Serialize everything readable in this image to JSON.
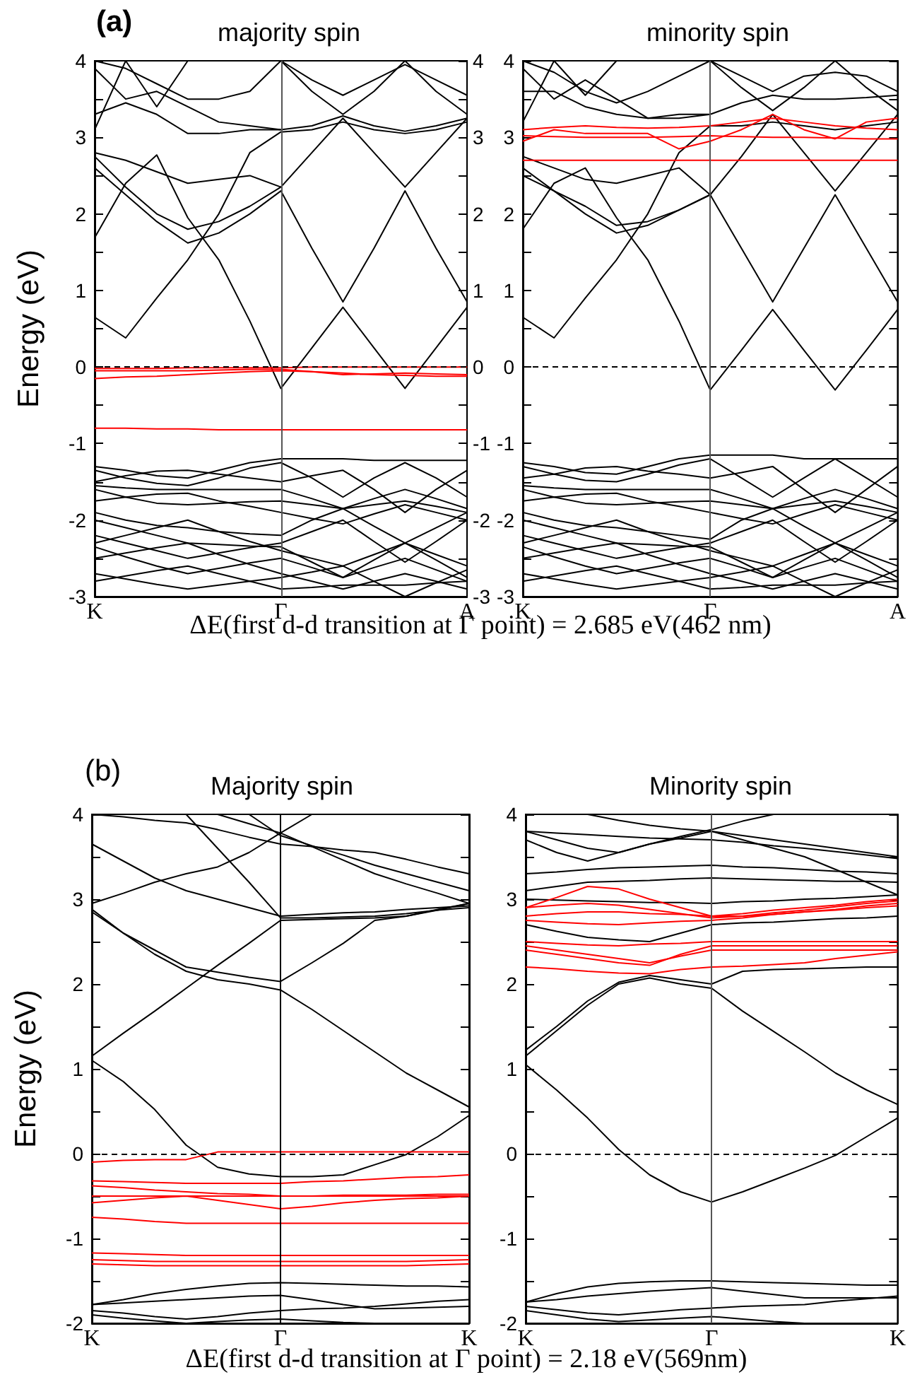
{
  "chart_data": [
    {
      "type": "line",
      "title": "majority spin",
      "ylabel": "Energy (eV)",
      "xlabel": "ΔE(first d-d transition at Γ point) = 2.685 eV(462 nm)",
      "annotations": [
        "(a)"
      ],
      "marker": "none",
      "grid": false,
      "categories": [
        "K",
        null,
        null,
        null,
        null,
        null,
        "Γ",
        null,
        null,
        null,
        null,
        null,
        "A"
      ],
      "ylim": [
        -3,
        4
      ],
      "yticks": [
        -3,
        {
          "value": -2.5,
          "label": null
        },
        -2,
        {
          "value": -1.5,
          "label": null
        },
        -1,
        {
          "value": -0.5,
          "label": null
        },
        0,
        {
          "value": 0.5,
          "label": null
        },
        1,
        {
          "value": 1.5,
          "label": null
        },
        2,
        {
          "value": 2.5,
          "label": null
        },
        3,
        {
          "value": 3.5,
          "label": null
        },
        4
      ],
      "y2lim": [
        -3,
        4
      ],
      "y2ticks": [
        -3,
        {
          "value": -2.5,
          "label": null
        },
        -2,
        {
          "value": -1.5,
          "label": null
        },
        -1,
        {
          "value": -0.5,
          "label": null
        },
        0,
        {
          "value": 0.5,
          "label": null
        },
        1,
        {
          "value": 1.5,
          "label": null
        },
        2,
        {
          "value": 2.5,
          "label": null
        },
        3,
        {
          "value": 3.5,
          "label": null
        },
        4
      ],
      "ref_lines": [
        {
          "axis": "x",
          "value": "Γ",
          "color": "#555555"
        },
        {
          "axis": "y",
          "value": 0,
          "line_style": "dashed",
          "color": "#000000"
        }
      ],
      "series": [
        {
          "color": "#000000",
          "values": [
            0.65,
            0.38,
            0.9,
            1.4,
            2.0,
            2.8,
            3.07,
            3.1,
            3.2,
            3.1,
            3.05,
            3.1,
            3.2
          ]
        },
        {
          "color": "#000000",
          "values": [
            1.69,
            2.4,
            2.77,
            1.95,
            1.4,
            0.6,
            -0.28,
            0.25,
            0.78,
            0.25,
            -0.28,
            0.25,
            0.78
          ]
        },
        {
          "color": "#000000",
          "values": [
            2.6,
            2.25,
            1.9,
            1.62,
            1.75,
            2.0,
            2.3,
            1.55,
            0.85,
            1.55,
            2.3,
            1.55,
            0.85
          ]
        },
        {
          "color": "#000000",
          "values": [
            2.75,
            2.35,
            2.0,
            1.8,
            1.9,
            2.1,
            2.35,
            2.8,
            3.25,
            2.8,
            2.35,
            2.8,
            3.25
          ]
        },
        {
          "color": "#000000",
          "values": [
            2.8,
            2.7,
            2.55,
            2.4,
            2.45,
            2.5,
            2.35,
            null,
            null,
            null,
            null,
            null,
            null
          ]
        },
        {
          "color": "#000000",
          "values": [
            3.3,
            3.45,
            3.3,
            3.05,
            3.05,
            3.1,
            3.1,
            3.15,
            3.28,
            3.15,
            3.08,
            3.15,
            3.25
          ]
        },
        {
          "color": "#000000",
          "values": [
            3.9,
            3.5,
            3.6,
            3.4,
            3.2,
            3.15,
            3.1,
            null,
            null,
            null,
            null,
            null,
            null
          ]
        },
        {
          "color": "#000000",
          "values": [
            4.0,
            3.9,
            3.7,
            3.5,
            3.5,
            3.6,
            4.0,
            3.6,
            3.3,
            3.6,
            4.0,
            3.6,
            3.3
          ]
        },
        {
          "color": "#000000",
          "values": [
            null,
            null,
            null,
            null,
            null,
            null,
            4.0,
            3.75,
            3.55,
            3.75,
            3.95,
            3.75,
            3.55
          ]
        },
        {
          "color": "#000000",
          "values": [
            3.1,
            4.0,
            3.4,
            4.0,
            null,
            null,
            null,
            null,
            null,
            null,
            null,
            null,
            null
          ]
        },
        {
          "color": "#ff0000",
          "values": [
            -0.02,
            -0.02,
            -0.02,
            -0.01,
            -0.01,
            -0.01,
            -0.01,
            0,
            0,
            0,
            0,
            0,
            0
          ]
        },
        {
          "color": "#ff0000",
          "values": [
            -0.05,
            -0.05,
            -0.05,
            -0.05,
            -0.04,
            -0.03,
            -0.03,
            -0.06,
            -0.1,
            -0.09,
            -0.08,
            -0.09,
            -0.1
          ]
        },
        {
          "color": "#ff0000",
          "values": [
            -0.15,
            -0.13,
            -0.12,
            -0.1,
            -0.08,
            -0.06,
            -0.05,
            -0.06,
            -0.08,
            -0.1,
            -0.11,
            -0.12,
            -0.12
          ]
        },
        {
          "color": "#ff0000",
          "values": [
            -0.8,
            -0.8,
            -0.81,
            -0.81,
            -0.82,
            -0.82,
            -0.82,
            -0.82,
            -0.82,
            -0.82,
            -0.82,
            -0.82,
            -0.82
          ]
        },
        {
          "color": "#000000",
          "values": [
            -1.3,
            -1.35,
            -1.42,
            -1.45,
            -1.35,
            -1.25,
            -1.2,
            -1.2,
            -1.2,
            -1.22,
            -1.22,
            -1.22,
            -1.22
          ]
        },
        {
          "color": "#000000",
          "values": [
            -1.35,
            -1.45,
            -1.52,
            -1.55,
            -1.45,
            -1.32,
            -1.25,
            -1.45,
            -1.7,
            -1.45,
            -1.25,
            -1.45,
            -1.7
          ]
        },
        {
          "color": "#000000",
          "values": [
            -1.5,
            -1.42,
            -1.36,
            -1.35,
            -1.4,
            -1.45,
            -1.5,
            -1.42,
            -1.35,
            -1.6,
            -1.9,
            -1.6,
            -1.35
          ]
        },
        {
          "color": "#000000",
          "values": [
            -1.55,
            -1.58,
            -1.6,
            -1.6,
            -1.6,
            -1.6,
            -1.6,
            -1.72,
            -1.85,
            -1.72,
            -1.6,
            -1.72,
            -1.85
          ]
        },
        {
          "color": "#000000",
          "values": [
            -1.6,
            -1.7,
            -1.78,
            -1.8,
            -1.78,
            -1.76,
            -1.75,
            -1.8,
            -1.85,
            -1.8,
            -1.75,
            -1.82,
            -1.9
          ]
        },
        {
          "color": "#000000",
          "values": [
            -1.75,
            -1.7,
            -1.66,
            -1.65,
            -1.75,
            -1.82,
            -1.9,
            -1.98,
            -2.05,
            -1.92,
            -1.8,
            -1.9,
            -2.0
          ]
        },
        {
          "color": "#000000",
          "values": [
            -1.9,
            -2.0,
            -2.07,
            -2.1,
            -2.15,
            -2.18,
            -2.2,
            -2.0,
            -1.85,
            -2.08,
            -2.3,
            -2.1,
            -1.9
          ]
        },
        {
          "color": "#000000",
          "values": [
            -2.0,
            -2.1,
            -2.2,
            -2.3,
            -2.32,
            -2.34,
            -2.35,
            -2.55,
            -2.75,
            -2.52,
            -2.3,
            -2.52,
            -2.75
          ]
        },
        {
          "color": "#000000",
          "values": [
            -2.2,
            -2.3,
            -2.4,
            -2.5,
            -2.43,
            -2.36,
            -2.3,
            -2.15,
            -2.0,
            -2.28,
            -2.55,
            -2.28,
            -2.0
          ]
        },
        {
          "color": "#000000",
          "values": [
            -2.3,
            -2.2,
            -2.1,
            -2.0,
            -2.15,
            -2.28,
            -2.4,
            -2.5,
            -2.6,
            -2.45,
            -2.3,
            -2.45,
            -2.6
          ]
        },
        {
          "color": "#000000",
          "values": [
            -2.35,
            -2.48,
            -2.6,
            -2.7,
            -2.63,
            -2.56,
            -2.5,
            -2.62,
            -2.75,
            -2.62,
            -2.5,
            -2.65,
            -2.8
          ]
        },
        {
          "color": "#000000",
          "values": [
            -2.5,
            -2.43,
            -2.36,
            -2.3,
            -2.45,
            -2.58,
            -2.7,
            -2.8,
            -2.9,
            -2.8,
            -2.7,
            -2.8,
            -2.9
          ]
        },
        {
          "color": "#000000",
          "values": [
            -2.7,
            -2.77,
            -2.84,
            -2.9,
            -2.85,
            -2.8,
            -2.75,
            -2.68,
            -2.6,
            -2.8,
            -3.0,
            -2.82,
            -2.65
          ]
        },
        {
          "color": "#000000",
          "values": [
            -2.8,
            -2.73,
            -2.66,
            -2.6,
            -2.7,
            -2.8,
            -2.9,
            -2.88,
            -2.85,
            -2.85,
            -2.85,
            -2.82,
            -2.8
          ]
        }
      ]
    },
    {
      "type": "line",
      "title": "minority spin",
      "marker": "none",
      "grid": false,
      "categories": [
        "K",
        null,
        null,
        null,
        null,
        null,
        "Γ",
        null,
        null,
        null,
        null,
        null,
        "A"
      ],
      "ylim": [
        -3,
        4
      ],
      "yticks": [
        -3,
        {
          "value": -2.5,
          "label": null
        },
        -2,
        {
          "value": -1.5,
          "label": null
        },
        -1,
        {
          "value": -0.5,
          "label": null
        },
        0,
        {
          "value": 0.5,
          "label": null
        },
        1,
        {
          "value": 1.5,
          "label": null
        },
        2,
        {
          "value": 2.5,
          "label": null
        },
        3,
        {
          "value": 3.5,
          "label": null
        },
        4
      ],
      "ref_lines": [
        {
          "axis": "x",
          "value": "Γ",
          "color": "#555555"
        },
        {
          "axis": "y",
          "value": 0,
          "line_style": "dashed",
          "color": "#000000"
        }
      ],
      "series": [
        {
          "color": "#000000",
          "values": [
            0.65,
            0.38,
            0.9,
            1.4,
            2.0,
            2.8,
            3.15,
            3.15,
            3.2,
            3.15,
            3.1,
            3.15,
            3.2
          ]
        },
        {
          "color": "#000000",
          "values": [
            1.8,
            2.4,
            2.6,
            1.95,
            1.4,
            0.6,
            -0.3,
            0.22,
            0.75,
            0.22,
            -0.3,
            0.22,
            0.75
          ]
        },
        {
          "color": "#000000",
          "values": [
            2.6,
            2.3,
            2.0,
            1.75,
            1.85,
            2.05,
            2.25,
            1.55,
            0.85,
            1.55,
            2.25,
            1.55,
            0.85
          ]
        },
        {
          "color": "#000000",
          "values": [
            2.5,
            2.3,
            2.1,
            1.85,
            1.9,
            2.05,
            2.25,
            2.75,
            3.3,
            2.8,
            2.3,
            2.8,
            3.3
          ]
        },
        {
          "color": "#000000",
          "values": [
            2.75,
            2.6,
            2.45,
            2.4,
            2.5,
            2.6,
            2.25,
            null,
            null,
            null,
            null,
            null,
            null
          ]
        },
        {
          "color": "#000000",
          "values": [
            3.6,
            3.6,
            3.4,
            3.3,
            3.25,
            3.25,
            3.3,
            3.45,
            3.55,
            3.5,
            3.5,
            3.52,
            3.55
          ]
        },
        {
          "color": "#000000",
          "values": [
            3.9,
            3.5,
            3.75,
            3.5,
            3.25,
            3.3,
            3.3,
            null,
            null,
            null,
            null,
            null,
            null
          ]
        },
        {
          "color": "#000000",
          "values": [
            4.0,
            3.85,
            3.6,
            3.45,
            3.6,
            3.8,
            4.0,
            3.65,
            3.35,
            3.65,
            4.0,
            3.65,
            3.35
          ]
        },
        {
          "color": "#000000",
          "values": [
            null,
            null,
            null,
            null,
            null,
            null,
            4.0,
            3.8,
            3.6,
            3.8,
            3.85,
            3.8,
            3.6
          ]
        },
        {
          "color": "#000000",
          "values": [
            3.2,
            4.0,
            3.55,
            4.0,
            null,
            null,
            null,
            null,
            null,
            null,
            null,
            null,
            null
          ]
        },
        {
          "color": "#ff0000",
          "values": [
            2.95,
            3.1,
            3.05,
            3.05,
            3.05,
            2.85,
            2.95,
            3.1,
            3.3,
            3.1,
            2.98,
            3.2,
            3.25
          ]
        },
        {
          "color": "#ff0000",
          "values": [
            3.02,
            3.01,
            3.0,
            3.0,
            3.0,
            3.01,
            3.02,
            3.01,
            3.0,
            3.0,
            2.99,
            2.98,
            2.98
          ]
        },
        {
          "color": "#ff0000",
          "values": [
            2.7,
            2.7,
            2.7,
            2.7,
            2.7,
            2.7,
            2.7,
            2.7,
            2.7,
            2.7,
            2.7,
            2.7,
            2.7
          ]
        },
        {
          "color": "#ff0000",
          "values": [
            3.1,
            3.13,
            3.15,
            3.13,
            3.12,
            3.13,
            3.15,
            3.2,
            3.25,
            3.2,
            3.15,
            3.12,
            3.1
          ]
        },
        {
          "color": "#000000",
          "values": [
            -1.25,
            -1.3,
            -1.38,
            -1.4,
            -1.3,
            -1.2,
            -1.15,
            -1.15,
            -1.15,
            -1.2,
            -1.2,
            -1.2,
            -1.2
          ]
        },
        {
          "color": "#000000",
          "values": [
            -1.3,
            -1.4,
            -1.48,
            -1.5,
            -1.4,
            -1.28,
            -1.2,
            -1.45,
            -1.7,
            -1.45,
            -1.2,
            -1.45,
            -1.7
          ]
        },
        {
          "color": "#000000",
          "values": [
            -1.45,
            -1.4,
            -1.32,
            -1.3,
            -1.36,
            -1.4,
            -1.45,
            -1.38,
            -1.3,
            -1.6,
            -1.9,
            -1.6,
            -1.3
          ]
        },
        {
          "color": "#000000",
          "values": [
            -1.55,
            -1.58,
            -1.6,
            -1.6,
            -1.6,
            -1.6,
            -1.6,
            -1.72,
            -1.85,
            -1.72,
            -1.6,
            -1.72,
            -1.85
          ]
        },
        {
          "color": "#000000",
          "values": [
            -1.6,
            -1.7,
            -1.78,
            -1.8,
            -1.78,
            -1.76,
            -1.75,
            -1.8,
            -1.85,
            -1.8,
            -1.75,
            -1.82,
            -1.9
          ]
        },
        {
          "color": "#000000",
          "values": [
            -1.75,
            -1.7,
            -1.66,
            -1.65,
            -1.75,
            -1.82,
            -1.9,
            -1.98,
            -2.05,
            -1.92,
            -1.8,
            -1.9,
            -2.0
          ]
        },
        {
          "color": "#000000",
          "values": [
            -1.9,
            -2.0,
            -2.07,
            -2.1,
            -2.15,
            -2.2,
            -2.25,
            -2.0,
            -1.85,
            -2.08,
            -2.3,
            -2.1,
            -1.9
          ]
        },
        {
          "color": "#000000",
          "values": [
            -2.0,
            -2.1,
            -2.2,
            -2.3,
            -2.32,
            -2.34,
            -2.35,
            -2.55,
            -2.75,
            -2.52,
            -2.3,
            -2.52,
            -2.75
          ]
        },
        {
          "color": "#000000",
          "values": [
            -2.2,
            -2.3,
            -2.4,
            -2.5,
            -2.43,
            -2.36,
            -2.3,
            -2.15,
            -2.0,
            -2.28,
            -2.55,
            -2.28,
            -2.0
          ]
        },
        {
          "color": "#000000",
          "values": [
            -2.3,
            -2.2,
            -2.1,
            -2.0,
            -2.15,
            -2.28,
            -2.4,
            -2.5,
            -2.6,
            -2.45,
            -2.3,
            -2.45,
            -2.6
          ]
        },
        {
          "color": "#000000",
          "values": [
            -2.35,
            -2.48,
            -2.6,
            -2.7,
            -2.63,
            -2.56,
            -2.5,
            -2.62,
            -2.75,
            -2.62,
            -2.5,
            -2.65,
            -2.8
          ]
        },
        {
          "color": "#000000",
          "values": [
            -2.5,
            -2.43,
            -2.36,
            -2.3,
            -2.45,
            -2.58,
            -2.7,
            -2.8,
            -2.9,
            -2.8,
            -2.7,
            -2.8,
            -2.9
          ]
        },
        {
          "color": "#000000",
          "values": [
            -2.7,
            -2.77,
            -2.84,
            -2.9,
            -2.85,
            -2.8,
            -2.75,
            -2.68,
            -2.6,
            -2.8,
            -3.0,
            -2.82,
            -2.65
          ]
        },
        {
          "color": "#000000",
          "values": [
            -2.8,
            -2.73,
            -2.66,
            -2.6,
            -2.7,
            -2.8,
            -2.9,
            -2.88,
            -2.85,
            -2.85,
            -2.85,
            -2.82,
            -2.8
          ]
        }
      ]
    },
    {
      "type": "line",
      "title": "Majority spin",
      "ylabel": "Energy (eV)",
      "xlabel": "ΔE(first d-d transition at Γ point) = 2.18 eV(569nm)",
      "annotations": [
        "(b)"
      ],
      "marker": "none",
      "grid": false,
      "categories": [
        "K",
        null,
        null,
        null,
        null,
        null,
        "Γ",
        null,
        null,
        null,
        null,
        null,
        "K"
      ],
      "ylim": [
        -2,
        4
      ],
      "yticks": [
        -2,
        {
          "value": -1.5,
          "label": null
        },
        -1,
        {
          "value": -0.5,
          "label": null
        },
        0,
        {
          "value": 0.5,
          "label": null
        },
        1,
        {
          "value": 1.5,
          "label": null
        },
        2,
        {
          "value": 2.5,
          "label": null
        },
        3,
        {
          "value": 3.5,
          "label": null
        },
        4
      ],
      "ref_lines": [
        {
          "axis": "x",
          "value": "Γ",
          "color": "#000000"
        },
        {
          "axis": "y",
          "value": 0,
          "line_style": "dashed",
          "color": "#000000"
        }
      ],
      "series": [
        {
          "color": "#000000",
          "values": [
            1.1,
            0.85,
            0.52,
            0.1,
            -0.16,
            -0.24,
            -0.27,
            -0.27,
            -0.25,
            -0.13,
            -0.01,
            0.2,
            0.45
          ]
        },
        {
          "color": "#000000",
          "values": [
            1.15,
            1.42,
            1.68,
            1.95,
            2.22,
            2.48,
            2.75,
            2.76,
            2.77,
            2.78,
            2.8,
            2.87,
            2.95
          ]
        },
        {
          "color": "#000000",
          "values": [
            2.85,
            2.6,
            2.4,
            2.2,
            2.14,
            2.08,
            2.03,
            2.25,
            2.48,
            2.75,
            2.8,
            2.88,
            2.95
          ]
        },
        {
          "color": "#000000",
          "values": [
            2.88,
            2.6,
            2.35,
            2.15,
            2.05,
            2.0,
            1.93,
            1.7,
            1.45,
            1.2,
            0.95,
            0.75,
            0.55
          ]
        },
        {
          "color": "#000000",
          "values": [
            2.95,
            3.07,
            3.2,
            3.3,
            3.38,
            3.55,
            3.78,
            4.0,
            null,
            null,
            null,
            null,
            null
          ]
        },
        {
          "color": "#000000",
          "values": [
            3.65,
            3.45,
            3.25,
            3.1,
            3.0,
            2.9,
            2.8,
            2.82,
            2.84,
            2.85,
            2.88,
            2.9,
            2.92
          ]
        },
        {
          "color": "#000000",
          "values": [
            null,
            null,
            null,
            4.0,
            3.6,
            3.2,
            2.78,
            2.78,
            2.79,
            2.8,
            2.83,
            2.87,
            2.9
          ]
        },
        {
          "color": "#000000",
          "values": [
            null,
            null,
            null,
            null,
            4.0,
            3.89,
            3.78,
            3.62,
            3.46,
            3.3,
            3.18,
            3.07,
            2.95
          ]
        },
        {
          "color": "#000000",
          "values": [
            4.0,
            3.97,
            3.93,
            3.9,
            3.82,
            3.73,
            3.65,
            3.62,
            3.58,
            3.55,
            3.47,
            3.38,
            3.3
          ]
        },
        {
          "color": "#000000",
          "values": [
            null,
            null,
            null,
            null,
            null,
            4.0,
            3.75,
            3.63,
            3.52,
            3.4,
            3.3,
            3.2,
            3.1
          ]
        },
        {
          "color": "#ff0000",
          "values": [
            -0.1,
            -0.08,
            -0.07,
            -0.07,
            0.02,
            0.02,
            0.02,
            0.02,
            0.02,
            0.02,
            0.02,
            0.02,
            0.02
          ]
        },
        {
          "color": "#ff0000",
          "values": [
            -0.32,
            -0.33,
            -0.34,
            -0.35,
            -0.35,
            -0.35,
            -0.35,
            -0.33,
            -0.32,
            -0.3,
            -0.28,
            -0.27,
            -0.25
          ]
        },
        {
          "color": "#ff0000",
          "values": [
            -0.38,
            -0.4,
            -0.43,
            -0.45,
            -0.47,
            -0.48,
            -0.5,
            -0.5,
            -0.49,
            -0.49,
            -0.49,
            -0.48,
            -0.48
          ]
        },
        {
          "color": "#ff0000",
          "values": [
            -0.5,
            -0.5,
            -0.5,
            -0.5,
            -0.5,
            -0.5,
            -0.5,
            -0.5,
            -0.5,
            -0.5,
            -0.5,
            -0.5,
            -0.5
          ]
        },
        {
          "color": "#ff0000",
          "values": [
            -0.58,
            -0.55,
            -0.52,
            -0.5,
            -0.55,
            -0.6,
            -0.65,
            -0.62,
            -0.58,
            -0.55,
            -0.53,
            -0.52,
            -0.5
          ]
        },
        {
          "color": "#ff0000",
          "values": [
            -0.75,
            -0.77,
            -0.8,
            -0.82,
            -0.82,
            -0.82,
            -0.82,
            -0.82,
            -0.82,
            -0.82,
            -0.82,
            -0.82,
            -0.82
          ]
        },
        {
          "color": "#ff0000",
          "values": [
            -1.17,
            -1.18,
            -1.19,
            -1.2,
            -1.2,
            -1.2,
            -1.2,
            -1.2,
            -1.2,
            -1.2,
            -1.2,
            -1.2,
            -1.2
          ]
        },
        {
          "color": "#ff0000",
          "values": [
            -1.25,
            -1.26,
            -1.27,
            -1.27,
            -1.27,
            -1.27,
            -1.27,
            -1.27,
            -1.27,
            -1.27,
            -1.27,
            -1.26,
            -1.25
          ]
        },
        {
          "color": "#ff0000",
          "values": [
            -1.3,
            -1.31,
            -1.32,
            -1.32,
            -1.32,
            -1.32,
            -1.32,
            -1.32,
            -1.32,
            -1.32,
            -1.32,
            -1.31,
            -1.3
          ]
        },
        {
          "color": "#000000",
          "values": [
            -1.78,
            -1.72,
            -1.65,
            -1.6,
            -1.56,
            -1.53,
            -1.52,
            -1.53,
            -1.54,
            -1.55,
            -1.56,
            -1.56,
            -1.57
          ]
        },
        {
          "color": "#000000",
          "values": [
            -1.78,
            -1.76,
            -1.74,
            -1.72,
            -1.7,
            -1.68,
            -1.67,
            -1.72,
            -1.78,
            -1.83,
            -1.82,
            -1.81,
            -1.8
          ]
        },
        {
          "color": "#000000",
          "values": [
            -1.85,
            -1.88,
            -1.92,
            -1.95,
            -1.92,
            -1.88,
            -1.85,
            -1.83,
            -1.82,
            -1.8,
            -1.77,
            -1.74,
            -1.72
          ]
        },
        {
          "color": "#000000",
          "values": [
            -1.9,
            -1.94,
            -1.97,
            -2.0,
            -1.98,
            -1.96,
            -1.95,
            -1.97,
            -1.99,
            -2.0,
            null,
            null,
            null
          ]
        }
      ]
    },
    {
      "type": "line",
      "title": "Minority spin",
      "marker": "none",
      "grid": false,
      "categories": [
        "K",
        null,
        null,
        null,
        null,
        null,
        "Γ",
        null,
        null,
        null,
        null,
        null,
        "K"
      ],
      "ylim": [
        -2,
        4
      ],
      "yticks": [
        -2,
        {
          "value": -1.5,
          "label": null
        },
        -1,
        {
          "value": -0.5,
          "label": null
        },
        0,
        {
          "value": 0.5,
          "label": null
        },
        1,
        {
          "value": 1.5,
          "label": null
        },
        2,
        {
          "value": 2.5,
          "label": null
        },
        3,
        {
          "value": 3.5,
          "label": null
        },
        4
      ],
      "ref_lines": [
        {
          "axis": "x",
          "value": "Γ",
          "color": "#555555"
        },
        {
          "axis": "y",
          "value": 0,
          "line_style": "dashed",
          "color": "#000000"
        }
      ],
      "series": [
        {
          "color": "#000000",
          "values": [
            1.05,
            0.75,
            0.42,
            0.05,
            -0.25,
            -0.45,
            -0.57,
            -0.45,
            -0.31,
            -0.17,
            -0.02,
            0.2,
            0.42
          ]
        },
        {
          "color": "#000000",
          "values": [
            1.15,
            1.45,
            1.75,
            2.0,
            2.07,
            2.0,
            1.95,
            1.68,
            1.44,
            1.2,
            0.95,
            0.75,
            0.58
          ]
        },
        {
          "color": "#000000",
          "values": [
            1.22,
            1.5,
            1.8,
            2.02,
            2.1,
            2.05,
            2.0,
            2.15,
            2.17,
            2.18,
            2.19,
            2.2,
            2.2
          ]
        },
        {
          "color": "#ff0000",
          "values": [
            2.2,
            2.18,
            2.15,
            2.13,
            2.12,
            2.17,
            2.2,
            2.21,
            2.23,
            2.25,
            2.3,
            2.34,
            2.38
          ]
        },
        {
          "color": "#ff0000",
          "values": [
            2.4,
            2.35,
            2.3,
            2.25,
            2.22,
            2.35,
            2.45,
            2.45,
            2.45,
            2.45,
            2.45,
            2.45,
            2.45
          ]
        },
        {
          "color": "#ff0000",
          "values": [
            2.45,
            2.4,
            2.35,
            2.3,
            2.25,
            2.33,
            2.4,
            2.4,
            2.4,
            2.4,
            2.4,
            2.4,
            2.4
          ]
        },
        {
          "color": "#ff0000",
          "values": [
            2.5,
            2.48,
            2.46,
            2.45,
            2.47,
            2.48,
            2.5,
            2.5,
            2.5,
            2.5,
            2.5,
            2.5,
            2.5
          ]
        },
        {
          "color": "#ff0000",
          "values": [
            2.75,
            2.73,
            2.71,
            2.7,
            2.72,
            2.74,
            2.75,
            2.78,
            2.82,
            2.85,
            2.88,
            2.92,
            2.95
          ]
        },
        {
          "color": "#ff0000",
          "values": [
            2.8,
            2.83,
            2.85,
            2.85,
            2.83,
            2.82,
            2.8,
            2.83,
            2.87,
            2.9,
            2.93,
            2.97,
            3.0
          ]
        },
        {
          "color": "#ff0000",
          "values": [
            2.9,
            2.93,
            2.95,
            2.93,
            2.88,
            2.83,
            2.78,
            2.8,
            2.84,
            2.87,
            2.91,
            2.95,
            2.98
          ]
        },
        {
          "color": "#ff0000",
          "values": [
            2.9,
            3.02,
            3.15,
            3.12,
            3.0,
            2.9,
            2.8,
            2.8,
            2.82,
            2.85,
            2.87,
            2.9,
            2.92
          ]
        },
        {
          "color": "#000000",
          "values": [
            3.3,
            3.32,
            3.35,
            3.37,
            3.38,
            3.39,
            3.4,
            3.38,
            3.37,
            3.35,
            3.33,
            3.32,
            3.3
          ]
        },
        {
          "color": "#000000",
          "values": [
            3.1,
            3.15,
            3.2,
            3.21,
            3.22,
            3.24,
            3.25,
            3.24,
            3.23,
            3.22,
            3.21,
            3.21,
            3.2
          ]
        },
        {
          "color": "#000000",
          "values": [
            3.7,
            3.55,
            3.45,
            3.55,
            3.65,
            3.72,
            3.8,
            3.75,
            3.7,
            3.65,
            3.6,
            3.55,
            3.5
          ]
        },
        {
          "color": "#000000",
          "values": [
            3.0,
            2.99,
            2.98,
            2.97,
            2.96,
            2.96,
            2.95,
            2.97,
            2.98,
            3.0,
            3.01,
            3.03,
            3.05
          ]
        },
        {
          "color": "#000000",
          "values": [
            2.7,
            2.62,
            2.55,
            2.52,
            2.5,
            2.6,
            2.7,
            2.72,
            2.73,
            2.75,
            2.77,
            2.78,
            2.8
          ]
        },
        {
          "color": "#000000",
          "values": [
            null,
            null,
            4.0,
            3.93,
            3.87,
            3.83,
            3.8,
            3.7,
            3.6,
            3.5,
            3.35,
            3.2,
            3.05
          ]
        },
        {
          "color": "#000000",
          "values": [
            3.8,
            3.78,
            3.76,
            3.74,
            3.72,
            3.71,
            3.7,
            3.67,
            3.63,
            3.6,
            3.56,
            3.52,
            3.48
          ]
        },
        {
          "color": "#000000",
          "values": [
            3.8,
            3.7,
            3.6,
            3.55,
            3.65,
            3.74,
            3.82,
            3.92,
            4.0,
            null,
            null,
            null,
            null
          ]
        },
        {
          "color": "#000000",
          "values": [
            -1.75,
            -1.65,
            -1.57,
            -1.53,
            -1.51,
            -1.5,
            -1.5,
            -1.51,
            -1.52,
            -1.53,
            -1.54,
            -1.55,
            -1.55
          ]
        },
        {
          "color": "#000000",
          "values": [
            -1.75,
            -1.72,
            -1.68,
            -1.65,
            -1.62,
            -1.6,
            -1.58,
            -1.62,
            -1.66,
            -1.7,
            -1.7,
            -1.7,
            -1.7
          ]
        },
        {
          "color": "#000000",
          "values": [
            -1.8,
            -1.84,
            -1.88,
            -1.9,
            -1.87,
            -1.84,
            -1.82,
            -1.8,
            -1.79,
            -1.78,
            -1.74,
            -1.71,
            -1.68
          ]
        },
        {
          "color": "#000000",
          "values": [
            -1.85,
            -1.9,
            -1.95,
            -1.98,
            -1.96,
            -1.94,
            -1.92,
            -1.95,
            -1.98,
            -2.0,
            null,
            null,
            null
          ]
        }
      ]
    }
  ]
}
